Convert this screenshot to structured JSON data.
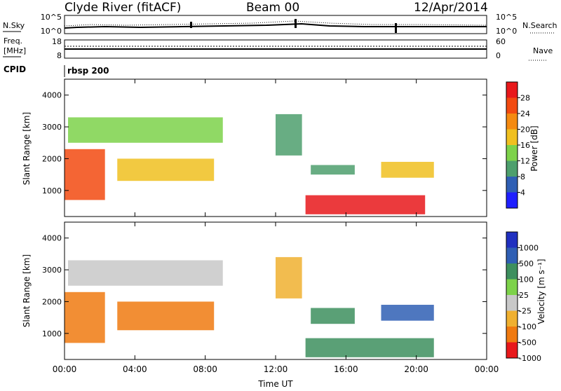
{
  "header": {
    "title": "Clyde River (fitACF)",
    "beam": "Beam 00",
    "date": "12/Apr/2014"
  },
  "top_panels": {
    "nsky_label": "N.Sky",
    "nsearch_label": "N.Search",
    "nsky_ticks_left": [
      "10^5",
      "10^0"
    ],
    "nsky_ticks_right": [
      "10^5",
      "10^0"
    ],
    "freq_label_1": "Freq.",
    "freq_label_2": "[MHz]",
    "freq_ticks_left": [
      "18",
      "8"
    ],
    "nave_ticks_right": [
      "60",
      "0"
    ],
    "nave_label": "Nave",
    "cpid_label": "CPID",
    "cpid_value": "rbsp 200"
  },
  "chart_data": [
    {
      "type": "heatmap",
      "title": "",
      "xlabel": "Time UT",
      "ylabel": "Slant Range [km]",
      "x_ticks": [
        "00:00",
        "04:00",
        "08:00",
        "12:00",
        "16:00",
        "20:00",
        "00:00"
      ],
      "x_range_hours": [
        0,
        24
      ],
      "y_ticks": [
        1000,
        2000,
        3000,
        4000
      ],
      "ylim": [
        180,
        4500
      ],
      "colorbar_label": "Power [dB]",
      "colorbar_ticks": [
        4,
        8,
        12,
        16,
        20,
        24,
        28
      ],
      "colorbar_colors": [
        "#1f1fff",
        "#2f5fb4",
        "#4d9f6d",
        "#7dd24a",
        "#f0c020",
        "#f58a10",
        "#f24a10",
        "#e8181b"
      ],
      "regions": [
        {
          "x": [
            0.2,
            9.0
          ],
          "y": [
            2500,
            3300
          ],
          "value": 12
        },
        {
          "x": [
            3.0,
            8.5
          ],
          "y": [
            1300,
            2000
          ],
          "value": 18
        },
        {
          "x": [
            0.0,
            2.3
          ],
          "y": [
            700,
            2300
          ],
          "value": 24
        },
        {
          "x": [
            12.0,
            13.5
          ],
          "y": [
            2100,
            3400
          ],
          "value": 10
        },
        {
          "x": [
            14.0,
            16.5
          ],
          "y": [
            1500,
            1800
          ],
          "value": 8
        },
        {
          "x": [
            18.0,
            21.0
          ],
          "y": [
            1400,
            1900
          ],
          "value": 16
        },
        {
          "x": [
            13.7,
            20.5
          ],
          "y": [
            250,
            850
          ],
          "value": 28
        }
      ]
    },
    {
      "type": "heatmap",
      "title": "",
      "xlabel": "Time UT",
      "ylabel": "Slant Range [km]",
      "x_ticks": [
        "00:00",
        "04:00",
        "08:00",
        "12:00",
        "16:00",
        "20:00",
        "00:00"
      ],
      "x_range_hours": [
        0,
        24
      ],
      "y_ticks": [
        1000,
        2000,
        3000,
        4000
      ],
      "ylim": [
        180,
        4500
      ],
      "colorbar_label": "Velocity [m s⁻¹]",
      "colorbar_ticks": [
        1000,
        500,
        100,
        25,
        -25,
        -100,
        -500,
        -1000
      ],
      "colorbar_colors": [
        "#2030c0",
        "#2f5fb4",
        "#3d8f5e",
        "#7dd24a",
        "#c8c8c8",
        "#f0b030",
        "#f07a10",
        "#e8181b"
      ],
      "regions": [
        {
          "x": [
            0.2,
            9.0
          ],
          "y": [
            2500,
            3300
          ],
          "value": 0
        },
        {
          "x": [
            3.0,
            8.5
          ],
          "y": [
            1100,
            2000
          ],
          "value": -300
        },
        {
          "x": [
            0.0,
            2.3
          ],
          "y": [
            700,
            2300
          ],
          "value": -300
        },
        {
          "x": [
            12.0,
            13.5
          ],
          "y": [
            2100,
            3400
          ],
          "value": -50
        },
        {
          "x": [
            14.0,
            16.5
          ],
          "y": [
            1300,
            1800
          ],
          "value": 200
        },
        {
          "x": [
            18.0,
            21.0
          ],
          "y": [
            1400,
            1900
          ],
          "value": 900
        },
        {
          "x": [
            13.7,
            21.0
          ],
          "y": [
            250,
            850
          ],
          "value": 100
        }
      ]
    }
  ]
}
